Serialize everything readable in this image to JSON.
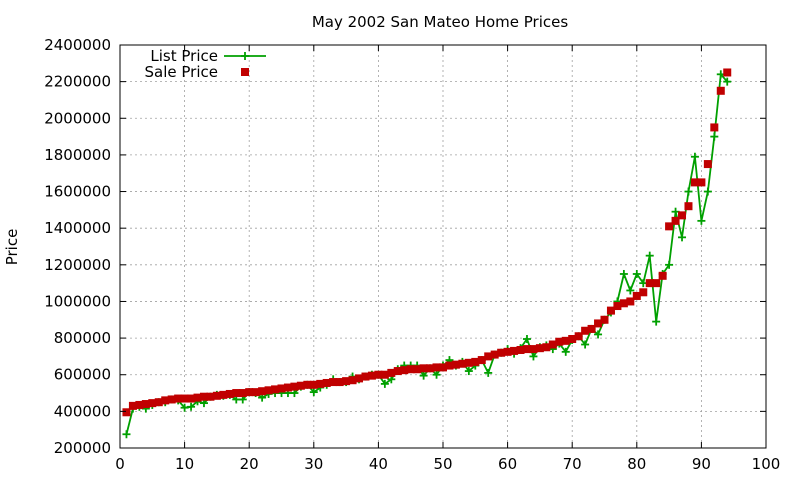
{
  "chart_data": {
    "type": "line",
    "title": "May 2002 San Mateo Home Prices",
    "xlabel": "",
    "ylabel": "Price",
    "xlim": [
      0,
      100
    ],
    "ylim": [
      200000,
      2400000
    ],
    "xticks": [
      0,
      10,
      20,
      30,
      40,
      50,
      60,
      70,
      80,
      90,
      100
    ],
    "yticks": [
      200000,
      400000,
      600000,
      800000,
      1000000,
      1200000,
      1400000,
      1600000,
      1800000,
      2000000,
      2200000,
      2400000
    ],
    "grid": true,
    "legend_position": "top-left",
    "series": [
      {
        "name": "List Price",
        "style": "lines+points",
        "color": "#00a000",
        "marker": "plus",
        "x": [
          1,
          2,
          3,
          4,
          5,
          6,
          7,
          8,
          9,
          10,
          11,
          12,
          13,
          14,
          15,
          16,
          17,
          18,
          19,
          20,
          21,
          22,
          23,
          24,
          25,
          26,
          27,
          28,
          29,
          30,
          31,
          32,
          33,
          34,
          35,
          36,
          37,
          38,
          39,
          40,
          41,
          42,
          43,
          44,
          45,
          46,
          47,
          48,
          49,
          50,
          51,
          52,
          53,
          54,
          55,
          56,
          57,
          58,
          59,
          60,
          61,
          62,
          63,
          64,
          65,
          66,
          67,
          68,
          69,
          70,
          71,
          72,
          73,
          74,
          75,
          76,
          77,
          78,
          79,
          80,
          81,
          82,
          83,
          84,
          85,
          86,
          87,
          88,
          89,
          90,
          91,
          92,
          93,
          94
        ],
        "y": [
          275000,
          415000,
          425000,
          415000,
          435000,
          450000,
          450000,
          465000,
          460000,
          420000,
          425000,
          455000,
          445000,
          480000,
          490000,
          485000,
          490000,
          465000,
          465000,
          505000,
          500000,
          475000,
          495000,
          500000,
          500000,
          500000,
          500000,
          535000,
          545000,
          505000,
          530000,
          545000,
          575000,
          560000,
          560000,
          590000,
          575000,
          590000,
          600000,
          600000,
          550000,
          575000,
          630000,
          650000,
          650000,
          650000,
          595000,
          635000,
          600000,
          650000,
          680000,
          650000,
          670000,
          620000,
          650000,
          680000,
          610000,
          710000,
          720000,
          740000,
          715000,
          745000,
          795000,
          700000,
          750000,
          760000,
          740000,
          770000,
          725000,
          790000,
          810000,
          765000,
          850000,
          820000,
          900000,
          940000,
          1000000,
          1150000,
          1060000,
          1150000,
          1100000,
          1250000,
          890000,
          1150000,
          1200000,
          1490000,
          1350000,
          1600000,
          1790000,
          1440000,
          1600000,
          1900000,
          2240000,
          2200000
        ]
      },
      {
        "name": "Sale Price",
        "style": "points",
        "color": "#c00000",
        "marker": "square",
        "x": [
          1,
          2,
          3,
          4,
          5,
          6,
          7,
          8,
          9,
          10,
          11,
          12,
          13,
          14,
          15,
          16,
          17,
          18,
          19,
          20,
          21,
          22,
          23,
          24,
          25,
          26,
          27,
          28,
          29,
          30,
          31,
          32,
          33,
          34,
          35,
          36,
          37,
          38,
          39,
          40,
          41,
          42,
          43,
          44,
          45,
          46,
          47,
          48,
          49,
          50,
          51,
          52,
          53,
          54,
          55,
          56,
          57,
          58,
          59,
          60,
          61,
          62,
          63,
          64,
          65,
          66,
          67,
          68,
          69,
          70,
          71,
          72,
          73,
          74,
          75,
          76,
          77,
          78,
          79,
          80,
          81,
          82,
          83,
          84,
          85,
          86,
          87,
          88,
          89,
          90,
          91,
          92,
          93,
          94
        ],
        "y": [
          395000,
          430000,
          435000,
          440000,
          445000,
          450000,
          460000,
          465000,
          470000,
          470000,
          470000,
          475000,
          480000,
          480000,
          485000,
          490000,
          495000,
          500000,
          500000,
          505000,
          505000,
          510000,
          515000,
          520000,
          525000,
          530000,
          535000,
          540000,
          545000,
          545000,
          550000,
          555000,
          560000,
          560000,
          565000,
          570000,
          580000,
          590000,
          595000,
          600000,
          600000,
          610000,
          620000,
          625000,
          630000,
          630000,
          635000,
          635000,
          640000,
          640000,
          650000,
          655000,
          660000,
          665000,
          670000,
          680000,
          700000,
          710000,
          720000,
          725000,
          730000,
          735000,
          740000,
          740000,
          745000,
          750000,
          765000,
          780000,
          785000,
          795000,
          810000,
          840000,
          850000,
          880000,
          900000,
          950000,
          975000,
          990000,
          1000000,
          1030000,
          1050000,
          1100000,
          1100000,
          1140000,
          1410000,
          1440000,
          1470000,
          1520000,
          1650000,
          1650000,
          1750000,
          1950000,
          2150000,
          2250000
        ]
      }
    ]
  }
}
